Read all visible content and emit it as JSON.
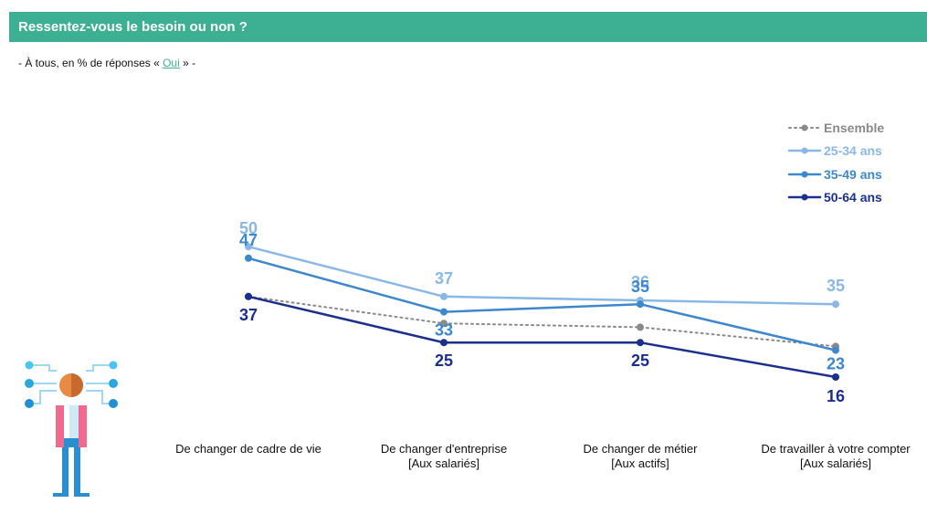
{
  "header": {
    "title": "Ressentez-vous le besoin ou non ?"
  },
  "subtitle": {
    "prefix": "- À tous, en % de réponses « ",
    "link": "Oui",
    "suffix": " » -"
  },
  "colors": {
    "header_bg": "#3daf93",
    "ensemble": "#8a8a8a",
    "age_25_34": "#8ab8e6",
    "age_35_49": "#3d87cf",
    "age_50_64": "#1b2f8f"
  },
  "chart_data": {
    "type": "line",
    "categories": [
      "De changer de cadre de vie",
      "De changer d'entreprise [Aux salariés]",
      "De changer de métier [Aux actifs]",
      "De travailler à votre compter [Aux salariés]"
    ],
    "category_lines": [
      [
        "De changer de cadre de vie"
      ],
      [
        "De changer d'entreprise",
        "[Aux salariés]"
      ],
      [
        "De changer de métier",
        "[Aux actifs]"
      ],
      [
        "De travailler à votre compter",
        "[Aux salariés]"
      ]
    ],
    "series": [
      {
        "name": "Ensemble",
        "values": [
          37,
          30,
          29,
          24
        ],
        "labels_shown": false,
        "style": "dotted",
        "color": "#8a8a8a"
      },
      {
        "name": "25-34 ans",
        "values": [
          50,
          37,
          36,
          35
        ],
        "labels_shown": true,
        "style": "solid",
        "color": "#8ab8e6"
      },
      {
        "name": "35-49 ans",
        "values": [
          47,
          33,
          35,
          23
        ],
        "labels_shown": true,
        "style": "solid",
        "color": "#3d87cf"
      },
      {
        "name": "50-64 ans",
        "values": [
          37,
          25,
          25,
          16
        ],
        "labels_shown": true,
        "style": "solid",
        "color": "#1b2f8f"
      }
    ],
    "legend_position": "top-right",
    "grid": false,
    "axes_visible": false
  }
}
